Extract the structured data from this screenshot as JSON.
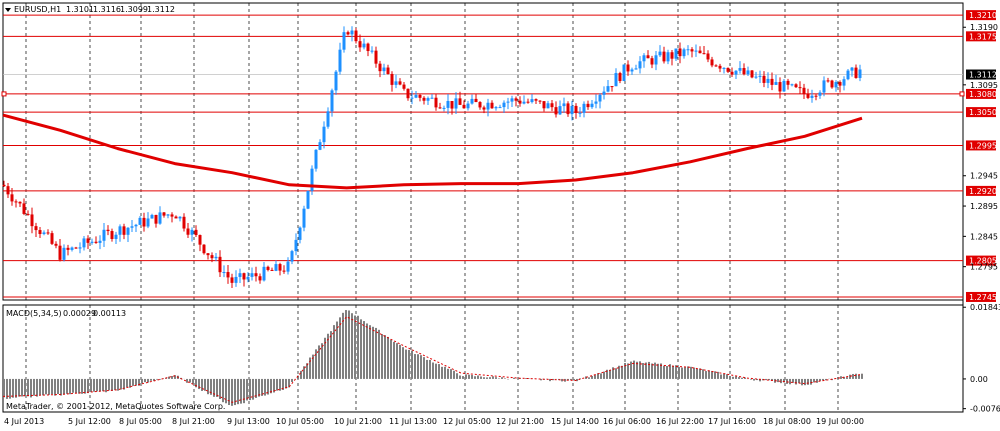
{
  "header": {
    "symbol_label": "EURUSD,H1",
    "open": "1.3101",
    "high": "1.3116",
    "low": "1.3099",
    "close": "1.3112"
  },
  "indicator": {
    "label": "MACD(5,34,5)",
    "value1": "0.00029",
    "value2": "0.00113"
  },
  "watermark": "MetaTrader, © 2001-2012, MetaQuotes Software Corp.",
  "colors": {
    "bull": "#1e90ff",
    "bear": "#e00000",
    "ma": "#e00000",
    "hline": "#e00000",
    "histogram": "#808080",
    "signal": "#e00000",
    "grid": "#000000"
  },
  "chart_data": [
    {
      "type": "candlestick",
      "title": "EURUSD,H1",
      "y_ticks": [
        "1.3190",
        "1.3095",
        "1.2945",
        "1.2895",
        "1.2845",
        "1.2795"
      ],
      "ylim": [
        1.274,
        1.323
      ],
      "current_price": "1.3112",
      "price_lines": [
        "1.3210",
        "1.3175",
        "1.3080",
        "1.3050",
        "1.2995",
        "1.2920",
        "1.2805",
        "1.2745"
      ],
      "x_ticks": [
        "4 Jul 2013",
        "5 Jul 12:00",
        "8 Jul 05:00",
        "8 Jul 21:00",
        "9 Jul 13:00",
        "10 Jul 05:00",
        "10 Jul 21:00",
        "11 Jul 13:00",
        "12 Jul 05:00",
        "12 Jul 21:00",
        "15 Jul 14:00",
        "16 Jul 06:00",
        "16 Jul 22:00",
        "17 Jul 16:00",
        "18 Jul 08:00",
        "19 Jul 00:00"
      ],
      "series": [
        {
          "kind": "ohlc",
          "close_path": [
            [
              "4 Jul 2013",
              1.293
            ],
            [
              "5 Jul 12:00",
              1.2815
            ],
            [
              "8 Jul 05:00",
              1.2855
            ],
            [
              "8 Jul 21:00",
              1.2885
            ],
            [
              "9 Jul 13:00",
              1.277
            ],
            [
              "10 Jul 05:00",
              1.2795
            ],
            [
              "10 Jul 21:00",
              1.319
            ],
            [
              "11 Jul 13:00",
              1.308
            ],
            [
              "12 Jul 05:00",
              1.306
            ],
            [
              "12 Jul 21:00",
              1.307
            ],
            [
              "15 Jul 14:00",
              1.305
            ],
            [
              "16 Jul 06:00",
              1.313
            ],
            [
              "16 Jul 22:00",
              1.315
            ],
            [
              "17 Jul 16:00",
              1.311
            ],
            [
              "18 Jul 08:00",
              1.308
            ],
            [
              "19 Jul 00:00",
              1.312
            ]
          ]
        },
        {
          "kind": "moving-average",
          "points": [
            [
              "4 Jul 2013",
              1.3045
            ],
            [
              "5 Jul 12:00",
              1.302
            ],
            [
              "8 Jul 05:00",
              1.299
            ],
            [
              "8 Jul 21:00",
              1.2965
            ],
            [
              "9 Jul 13:00",
              1.295
            ],
            [
              "10 Jul 05:00",
              1.293
            ],
            [
              "10 Jul 21:00",
              1.2925
            ],
            [
              "11 Jul 13:00",
              1.293
            ],
            [
              "12 Jul 05:00",
              1.2932
            ],
            [
              "12 Jul 21:00",
              1.2932
            ],
            [
              "15 Jul 14:00",
              1.2938
            ],
            [
              "16 Jul 06:00",
              1.295
            ],
            [
              "16 Jul 22:00",
              1.2968
            ],
            [
              "17 Jul 16:00",
              1.299
            ],
            [
              "18 Jul 08:00",
              1.301
            ],
            [
              "19 Jul 00:00",
              1.304
            ]
          ]
        }
      ]
    },
    {
      "type": "bar",
      "title": "MACD(5,34,5)",
      "y_ticks": [
        "0.01843",
        "0.00",
        "-0.00764"
      ],
      "ylim": [
        -0.0085,
        0.019
      ],
      "series": [
        {
          "kind": "histogram",
          "points": [
            [
              "4 Jul 2013",
              -0.005
            ],
            [
              "5 Jul 12:00",
              -0.004
            ],
            [
              "8 Jul 05:00",
              -0.003
            ],
            [
              "8 Jul 21:00",
              0.001
            ],
            [
              "9 Jul 13:00",
              -0.007
            ],
            [
              "10 Jul 05:00",
              -0.002
            ],
            [
              "10 Jul 21:00",
              0.018
            ],
            [
              "11 Jul 13:00",
              0.008
            ],
            [
              "12 Jul 05:00",
              0.001
            ],
            [
              "12 Jul 21:00",
              0.0
            ],
            [
              "15 Jul 14:00",
              -0.0005
            ],
            [
              "16 Jul 06:00",
              0.0045
            ],
            [
              "16 Jul 22:00",
              0.003
            ],
            [
              "17 Jul 16:00",
              0.0
            ],
            [
              "18 Jul 08:00",
              -0.0015
            ],
            [
              "19 Jul 00:00",
              0.0015
            ]
          ]
        },
        {
          "kind": "signal",
          "points": [
            [
              "4 Jul 2013",
              -0.0045
            ],
            [
              "5 Jul 12:00",
              -0.004
            ],
            [
              "8 Jul 05:00",
              -0.0028
            ],
            [
              "8 Jul 21:00",
              0.0008
            ],
            [
              "9 Jul 13:00",
              -0.006
            ],
            [
              "10 Jul 05:00",
              -0.002
            ],
            [
              "10 Jul 21:00",
              0.016
            ],
            [
              "11 Jul 13:00",
              0.0085
            ],
            [
              "12 Jul 05:00",
              0.0015
            ],
            [
              "12 Jul 21:00",
              0.0002
            ],
            [
              "15 Jul 14:00",
              -0.0004
            ],
            [
              "16 Jul 06:00",
              0.004
            ],
            [
              "16 Jul 22:00",
              0.003
            ],
            [
              "17 Jul 16:00",
              0.0002
            ],
            [
              "18 Jul 08:00",
              -0.0012
            ],
            [
              "19 Jul 00:00",
              0.0012
            ]
          ]
        }
      ]
    }
  ]
}
